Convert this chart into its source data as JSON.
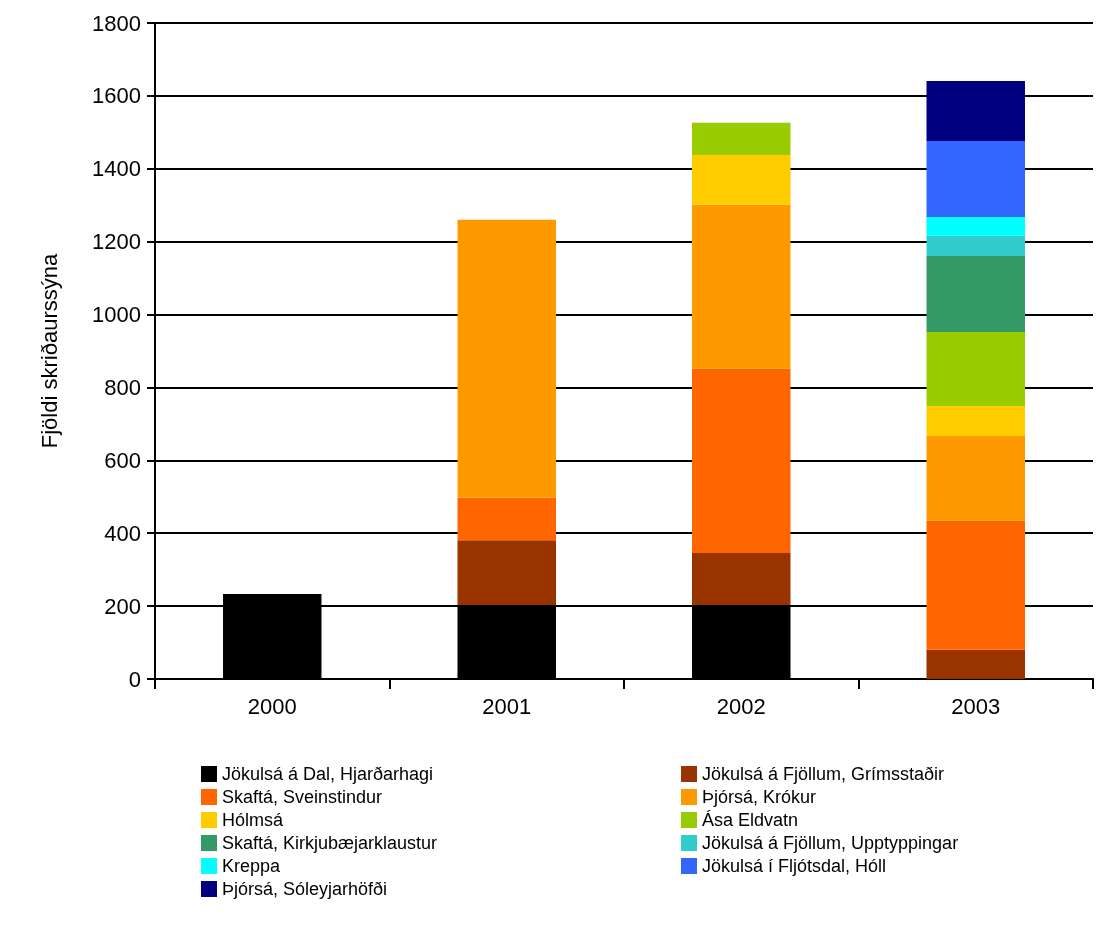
{
  "chart_data": {
    "type": "bar",
    "stacked": true,
    "ylabel": "Fjöldi skriðaurssýna",
    "categories": [
      "2000",
      "2001",
      "2002",
      "2003"
    ],
    "ylim": [
      0,
      1800
    ],
    "yticks": [
      0,
      200,
      400,
      600,
      800,
      1000,
      1200,
      1400,
      1600,
      1800
    ],
    "grid": "y",
    "legend": "bottom",
    "series": [
      {
        "name": "Jökulsá á Dal, Hjarðarhagi",
        "color": "#000000",
        "values": [
          233,
          203,
          203,
          null
        ]
      },
      {
        "name": "Jökulsá á Fjöllum, Grímsstaðir",
        "color": "#993300",
        "values": [
          null,
          178,
          143,
          80
        ]
      },
      {
        "name": "Skaftá, Sveinstindur",
        "color": "#ff6600",
        "values": [
          null,
          116,
          505,
          354
        ]
      },
      {
        "name": "Þjórsá, Krókur",
        "color": "#ff9900",
        "values": [
          null,
          763,
          450,
          233
        ]
      },
      {
        "name": "Hólmsá",
        "color": "#ffcc00",
        "values": [
          null,
          null,
          137,
          82
        ]
      },
      {
        "name": "Ása Eldvatn",
        "color": "#99cc00",
        "values": [
          null,
          null,
          88,
          203
        ]
      },
      {
        "name": "Skaftá, Kirkjubæjarklaustur",
        "color": "#339966",
        "values": [
          null,
          null,
          null,
          209
        ]
      },
      {
        "name": "Jökulsá á Fjöllum, Upptyppingar",
        "color": "#33cccc",
        "values": [
          null,
          null,
          null,
          55
        ]
      },
      {
        "name": "Kreppa",
        "color": "#00ffff",
        "values": [
          null,
          null,
          null,
          52
        ]
      },
      {
        "name": "Jökulsá í Fljótsdal, Hóll",
        "color": "#3366ff",
        "values": [
          null,
          null,
          null,
          208
        ]
      },
      {
        "name": "Þjórsá, Sóleyjarhöfði",
        "color": "#000080",
        "values": [
          null,
          null,
          null,
          165
        ]
      }
    ]
  }
}
